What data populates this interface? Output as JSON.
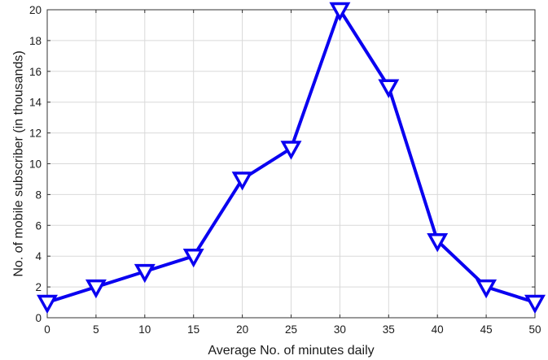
{
  "chart_data": {
    "type": "line",
    "title": "",
    "xlabel": "Average No. of minutes daily",
    "ylabel": "No. of mobile subscriber (in thousands)",
    "xlim": [
      0,
      50
    ],
    "ylim": [
      0,
      20
    ],
    "xticks": [
      0,
      5,
      10,
      15,
      20,
      25,
      30,
      35,
      40,
      45,
      50
    ],
    "yticks": [
      0,
      2,
      4,
      6,
      8,
      10,
      12,
      14,
      16,
      18,
      20
    ],
    "grid": true,
    "legend": "none",
    "series": [
      {
        "x": [
          0,
          5,
          10,
          15,
          20,
          25,
          30,
          35,
          40,
          45,
          50
        ],
        "y": [
          1,
          2,
          3,
          4,
          9,
          11,
          20,
          15,
          5,
          2,
          1
        ],
        "color": "#0a00f0",
        "marker": "triangle-down"
      }
    ]
  }
}
